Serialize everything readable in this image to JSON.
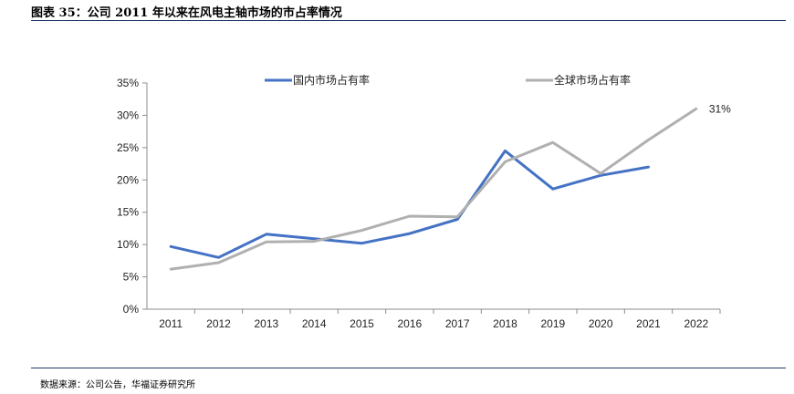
{
  "figure_title": "图表 35：公司 2011 年以来在风电主轴市场的市占率情况",
  "source_note": "数据来源：公司公告，华福证券研究所",
  "chart_data": {
    "type": "line",
    "x": [
      "2011",
      "2012",
      "2013",
      "2014",
      "2015",
      "2016",
      "2017",
      "2018",
      "2019",
      "2020",
      "2021",
      "2022"
    ],
    "ylim": [
      0,
      35
    ],
    "y_ticks": [
      "0%",
      "5%",
      "10%",
      "15%",
      "20%",
      "25%",
      "30%",
      "35%"
    ],
    "grid": false,
    "legend_position": "top",
    "series": [
      {
        "name": "国内市场占有率",
        "color": "#4472c4",
        "values": [
          9.7,
          8.0,
          11.6,
          10.9,
          10.2,
          11.7,
          13.9,
          24.5,
          18.6,
          20.7,
          22.0,
          null
        ]
      },
      {
        "name": "全球市场占有率",
        "color": "#b0b0b0",
        "values": [
          6.2,
          7.2,
          10.4,
          10.5,
          12.2,
          14.4,
          14.3,
          22.8,
          25.8,
          21.0,
          26.2,
          31.0
        ]
      }
    ],
    "annotations": [
      {
        "text": "31%",
        "series": 1,
        "index": 11
      }
    ]
  }
}
